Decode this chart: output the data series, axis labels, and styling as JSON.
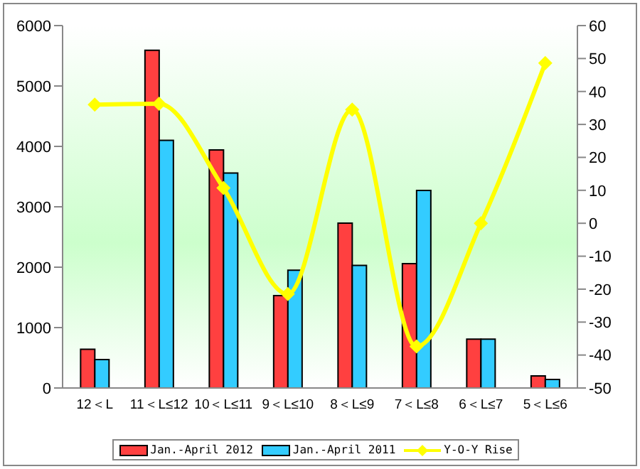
{
  "chart_data": {
    "type": "bar",
    "categories": [
      "12＜L",
      "11＜L≤12",
      "10＜L≤11",
      "9＜L≤10",
      "8＜L≤9",
      "7＜L≤8",
      "6＜L≤7",
      "5＜L≤6"
    ],
    "series": [
      {
        "name": "Jan.-April 2012",
        "color": "#ff4040",
        "values": [
          640,
          5590,
          3940,
          1530,
          2730,
          2060,
          810,
          200
        ]
      },
      {
        "name": "Jan.-April 2011",
        "color": "#33ccff",
        "values": [
          470,
          4100,
          3560,
          1950,
          2030,
          3270,
          810,
          140
        ]
      },
      {
        "name": "Y-O-Y Rise",
        "type": "line",
        "axis": "y2",
        "color": "#ffff00",
        "marker": "diamond",
        "values": [
          36,
          36.3,
          10.7,
          -21.5,
          34.5,
          -37.4,
          0,
          48.6
        ]
      }
    ],
    "ylim": [
      0,
      6000
    ],
    "yticks": [
      0,
      1000,
      2000,
      3000,
      4000,
      5000,
      6000
    ],
    "y2lim": [
      -50,
      60
    ],
    "y2ticks": [
      -50,
      -40,
      -30,
      -20,
      -10,
      0,
      10,
      20,
      30,
      40,
      50,
      60
    ],
    "grid": false,
    "legend": "bottom"
  }
}
